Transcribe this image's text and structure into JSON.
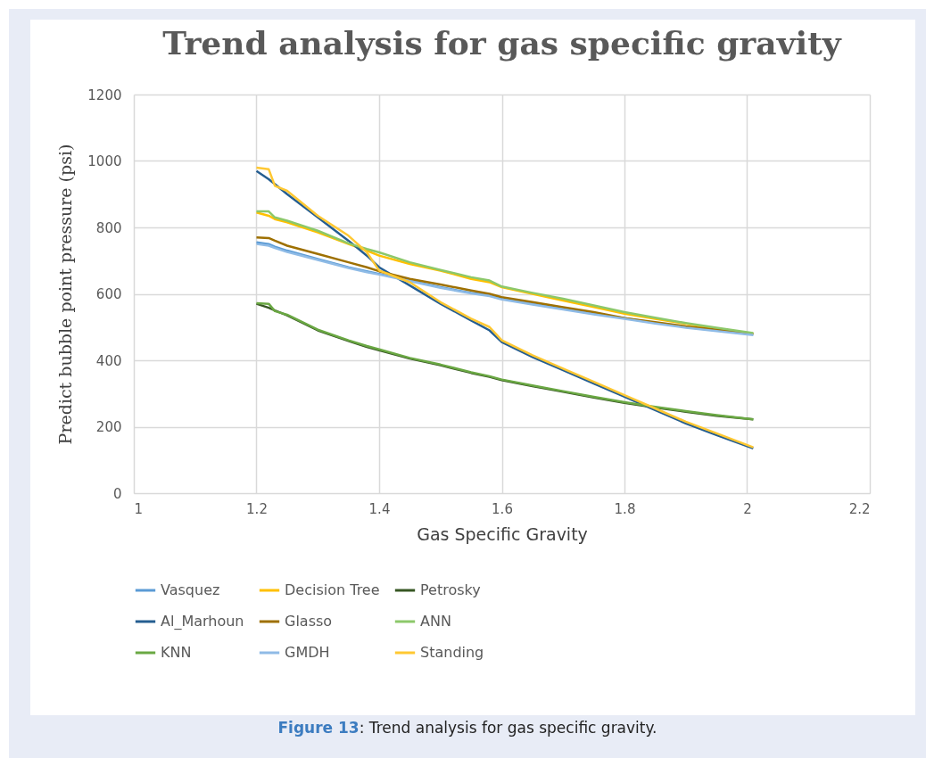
{
  "chart_data": {
    "type": "line",
    "title": "Trend analysis for gas specific gravity",
    "xlabel": "Gas Specific Gravity",
    "ylabel": "Predict bubble point pressure (psi)",
    "x": [
      1.2,
      1.22,
      1.23,
      1.25,
      1.3,
      1.35,
      1.38,
      1.4,
      1.45,
      1.5,
      1.55,
      1.58,
      1.6,
      1.65,
      1.7,
      1.75,
      1.8,
      1.85,
      1.9,
      1.95,
      2.01
    ],
    "series": [
      {
        "name": "Vasquez",
        "color": "#5b9bd5",
        "values": [
          755,
          750,
          742,
          730,
          705,
          680,
          668,
          660,
          640,
          620,
          603,
          595,
          585,
          570,
          555,
          540,
          527,
          513,
          500,
          490,
          478
        ]
      },
      {
        "name": "Decision Tree",
        "color": "#ffc000",
        "values": [
          845,
          835,
          825,
          815,
          785,
          750,
          730,
          715,
          690,
          670,
          645,
          635,
          620,
          600,
          580,
          560,
          540,
          525,
          510,
          495,
          480
        ]
      },
      {
        "name": "Petrosky",
        "color": "#375623",
        "values": [
          570,
          558,
          550,
          535,
          490,
          458,
          440,
          430,
          405,
          385,
          362,
          350,
          340,
          322,
          305,
          288,
          272,
          258,
          245,
          233,
          222
        ]
      },
      {
        "name": "Al_Marhoun",
        "color": "#255e91",
        "values": [
          970,
          945,
          930,
          900,
          830,
          760,
          715,
          680,
          625,
          570,
          520,
          490,
          455,
          410,
          370,
          330,
          290,
          250,
          210,
          175,
          135
        ]
      },
      {
        "name": "Glasso",
        "color": "#9e7000",
        "values": [
          770,
          768,
          760,
          745,
          720,
          695,
          680,
          668,
          645,
          628,
          610,
          600,
          590,
          575,
          560,
          545,
          527,
          515,
          502,
          492,
          480
        ]
      },
      {
        "name": "ANN",
        "color": "#8cc86a",
        "values": [
          848,
          848,
          830,
          820,
          790,
          752,
          735,
          725,
          695,
          672,
          650,
          640,
          622,
          603,
          585,
          565,
          545,
          528,
          512,
          498,
          482
        ]
      },
      {
        "name": "KNN",
        "color": "#6aa843",
        "values": [
          572,
          570,
          548,
          537,
          492,
          460,
          443,
          433,
          407,
          387,
          364,
          352,
          342,
          324,
          307,
          290,
          274,
          260,
          247,
          235,
          222
        ]
      },
      {
        "name": "GMDH",
        "color": "#8fbbe6",
        "values": [
          750,
          745,
          738,
          726,
          702,
          678,
          665,
          658,
          638,
          618,
          601,
          593,
          583,
          568,
          553,
          538,
          525,
          511,
          498,
          488,
          476
        ]
      },
      {
        "name": "Standing",
        "color": "#ffc832",
        "values": [
          980,
          975,
          925,
          910,
          835,
          775,
          725,
          670,
          635,
          575,
          525,
          500,
          460,
          415,
          375,
          335,
          295,
          255,
          215,
          180,
          138
        ]
      }
    ],
    "xlim": [
      1,
      2.2
    ],
    "xticks": [
      1,
      1.2,
      1.4,
      1.6,
      1.8,
      2,
      2.2
    ],
    "ylim": [
      0,
      1200
    ],
    "yticks": [
      0,
      200,
      400,
      600,
      800,
      1000,
      1200
    ],
    "grid": true,
    "legend": "bottom",
    "line_style": "solid",
    "annotations": [
      "Figure 13: Trend analysis for gas specific gravity."
    ]
  }
}
